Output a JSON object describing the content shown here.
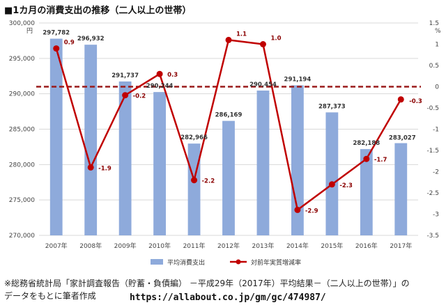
{
  "title": "■1カ月の消費支出の推移（二人以上の世帯）",
  "footnote_line1": "※総務省統計局「家計調査報告（貯蓄・負債編） －平成29年（2017年）平均結果－（二人以上の世帯）」の",
  "footnote_line2": "データをもとに筆者作成",
  "url": "https://allabout.co.jp/gm/gc/474987/",
  "colors": {
    "bar": "#8eaadb",
    "line": "#c00000",
    "baseline": "#9a1b1b",
    "grid": "#d9d9d9"
  },
  "chart_data": {
    "type": "bar+line",
    "categories": [
      "2007年",
      "2008年",
      "2009年",
      "2010年",
      "2011年",
      "2012年",
      "2013年",
      "2014年",
      "2015年",
      "2016年",
      "2017年"
    ],
    "left_axis": {
      "unit": "円",
      "ylim": [
        270000,
        300000
      ],
      "ticks": [
        270000,
        275000,
        280000,
        285000,
        290000,
        295000,
        300000
      ],
      "tick_labels": [
        "270,000",
        "275,000",
        "280,000",
        "285,000",
        "290,000",
        "295,000",
        "300,000"
      ]
    },
    "right_axis": {
      "unit": "%",
      "ylim": [
        -3.5,
        1.5
      ],
      "ticks": [
        -3.5,
        -3,
        -2.5,
        -2,
        -1.5,
        -1,
        -0.5,
        0,
        0.5,
        1,
        1.5
      ],
      "tick_labels": [
        "-3.5",
        "-3",
        "-2.5",
        "-2",
        "-1.5",
        "-1",
        "-0.5",
        "0",
        "0.5",
        "1",
        "1.5"
      ]
    },
    "series": [
      {
        "name": "平均消費支出",
        "type": "bar",
        "axis": "left",
        "values": [
          297782,
          296932,
          291737,
          290244,
          282966,
          286169,
          290454,
          291194,
          287373,
          282188,
          283027
        ],
        "labels": [
          "297,782",
          "296,932",
          "291,737",
          "290,244",
          "282,966",
          "286,169",
          "290,454",
          "291,194",
          "287,373",
          "282,188",
          "283,027"
        ]
      },
      {
        "name": "対前年実質増減率",
        "type": "line",
        "axis": "right",
        "values": [
          0.9,
          -1.9,
          -0.2,
          0.3,
          -2.2,
          1.1,
          1.0,
          -2.9,
          -2.3,
          -1.7,
          -0.3
        ],
        "labels": [
          "0.9",
          "-1.9",
          "-0.2",
          "0.3",
          "-2.2",
          "1.1",
          "1.0",
          "-2.9",
          "-2.3",
          "-1.7",
          "-0.3"
        ]
      }
    ],
    "baseline_value": 0
  }
}
